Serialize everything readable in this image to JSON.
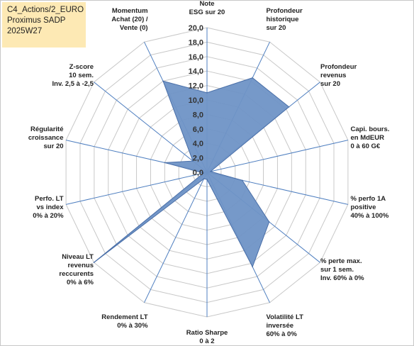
{
  "info": {
    "line1": "C4_Actions/2_EURO",
    "line2": "Proximus SADP",
    "line3": "2025W27"
  },
  "colors": {
    "fill": "#6f93c6",
    "stroke": "#4a6fa8",
    "grid": "#c8c8c8",
    "spoke": "#4f7fc0"
  },
  "chart_data": {
    "type": "radar",
    "ylim": [
      0,
      20
    ],
    "tick_step": 2,
    "tick_labels": [
      "0,0",
      "2,0",
      "4,0",
      "6,0",
      "8,0",
      "10,0",
      "12,0",
      "14,0",
      "16,0",
      "18,0",
      "20,0"
    ],
    "axes": [
      [
        "Note",
        "ESG sur 20"
      ],
      [
        "Profondeur",
        "historique",
        "sur 20"
      ],
      [
        "Profondeur",
        "revenus",
        "sur 20"
      ],
      [
        "Capi. bours.",
        "en MdEUR",
        "0 à 60 G€"
      ],
      [
        "% perfo 1A",
        "positive",
        "40% à 100%"
      ],
      [
        "% perte max.",
        "sur 1 sem.",
        "Inv. 60% à 0%"
      ],
      [
        "Volatilité LT",
        "inversée",
        "60% à 0%"
      ],
      [
        "Ratio Sharpe",
        "0 à 2"
      ],
      [
        "Rendement LT",
        "0% à 30%"
      ],
      [
        "Niveau LT",
        "revenus",
        "reccurents",
        "0% à 6%"
      ],
      [
        "Perfo. LT",
        "vs index",
        "0% à 20%"
      ],
      [
        "Régularité",
        "croissance",
        "sur 20"
      ],
      [
        "Z-score",
        "10 sem.",
        "Inv. 2,5 à -2,5"
      ],
      [
        "Momentum",
        "Achat (20) /",
        "Vente (0)"
      ]
    ],
    "series": [
      {
        "values": [
          11,
          14.5,
          14.5,
          0.5,
          5,
          11,
          14.5,
          1,
          1,
          20,
          0.5,
          6,
          2.5,
          14
        ]
      }
    ]
  }
}
